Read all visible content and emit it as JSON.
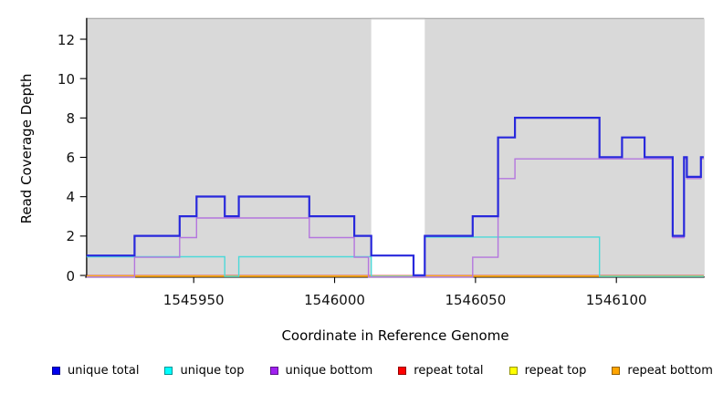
{
  "chart_data": {
    "type": "line",
    "step_style": "step-after",
    "title": "",
    "xlabel": "Coordinate in Reference Genome",
    "ylabel": "Read Coverage Depth",
    "x_ticks": [
      1545950,
      1546000,
      1546050,
      1546100
    ],
    "y_ticks": [
      0,
      2,
      4,
      6,
      8,
      10,
      12
    ],
    "xlim": [
      1545912,
      1546131
    ],
    "ylim": [
      0,
      13
    ],
    "grid": false,
    "legend_position": "bottom",
    "plot_bg_color": "#d9d9d9",
    "masked_region": {
      "x_start": 1546013,
      "x_end": 1546032,
      "color": "#ffffff"
    },
    "series": [
      {
        "name": "unique total",
        "legend_color": "#0000ee",
        "line_color": "#2828dc",
        "line_width": 2.2,
        "steps": [
          [
            1545912,
            1
          ],
          [
            1545929,
            2
          ],
          [
            1545945,
            3
          ],
          [
            1545951,
            4
          ],
          [
            1545961,
            3
          ],
          [
            1545966,
            4
          ],
          [
            1545991,
            3
          ],
          [
            1546007,
            2
          ],
          [
            1546013,
            1
          ],
          [
            1546028,
            0
          ],
          [
            1546032,
            2
          ],
          [
            1546049,
            3
          ],
          [
            1546058,
            7
          ],
          [
            1546064,
            8
          ],
          [
            1546094,
            6
          ],
          [
            1546102,
            7
          ],
          [
            1546110,
            6
          ],
          [
            1546120,
            2
          ],
          [
            1546124,
            6
          ],
          [
            1546125,
            5
          ],
          [
            1546130,
            6
          ],
          [
            1546131,
            6
          ]
        ]
      },
      {
        "name": "unique top",
        "legend_color": "#00ffff",
        "line_color": "#4cd9d9",
        "line_width": 1.4,
        "steps": [
          [
            1545912,
            1
          ],
          [
            1545961,
            0
          ],
          [
            1545966,
            1
          ],
          [
            1546013,
            0
          ],
          [
            1546032,
            2
          ],
          [
            1546094,
            0
          ],
          [
            1546131,
            0
          ]
        ]
      },
      {
        "name": "unique bottom",
        "legend_color": "#a020f0",
        "line_color": "#b476de",
        "line_width": 1.4,
        "steps": [
          [
            1545912,
            0
          ],
          [
            1545929,
            1
          ],
          [
            1545945,
            2
          ],
          [
            1545951,
            3
          ],
          [
            1545991,
            2
          ],
          [
            1546007,
            1
          ],
          [
            1546012,
            0
          ],
          [
            1546049,
            1
          ],
          [
            1546058,
            5
          ],
          [
            1546064,
            6
          ],
          [
            1546120,
            2
          ],
          [
            1546124,
            6
          ],
          [
            1546125,
            5
          ],
          [
            1546130,
            6
          ],
          [
            1546131,
            6
          ]
        ]
      },
      {
        "name": "repeat total",
        "legend_color": "#ff0000",
        "line_color": "#e82222",
        "line_width": 1.4,
        "steps": [
          [
            1545912,
            0
          ],
          [
            1546131,
            0
          ]
        ]
      },
      {
        "name": "repeat top",
        "legend_color": "#ffff00",
        "line_color": "#f0e400",
        "line_width": 1.4,
        "steps": [
          [
            1545912,
            0
          ],
          [
            1546131,
            0
          ]
        ]
      },
      {
        "name": "repeat bottom",
        "legend_color": "#ffa500",
        "line_color": "#ff9e1c",
        "line_width": 1.4,
        "steps": [
          [
            1545912,
            0
          ],
          [
            1546131,
            0
          ]
        ]
      }
    ]
  }
}
